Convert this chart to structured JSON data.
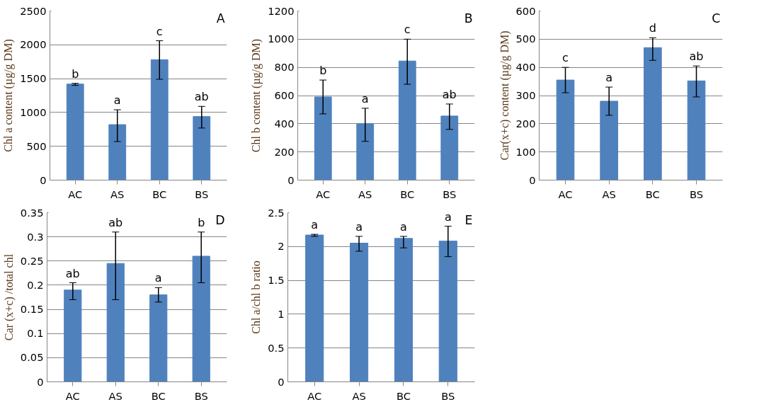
{
  "chart_data": [
    {
      "type": "bar",
      "ylabel": "Chl a content (µg/g DM)",
      "categories": [
        "AC",
        "AS",
        "BC",
        "BS"
      ],
      "series": [
        {
          "color": "#4f81bd",
          "values": [
            1420,
            820,
            1780,
            940
          ],
          "errors": [
            [
              1400,
              1430
            ],
            [
              570,
              1040
            ],
            [
              1490,
              2060
            ],
            [
              770,
              1090
            ]
          ]
        }
      ],
      "ylim": [
        0,
        2500
      ],
      "yticks": [
        0,
        500,
        1000,
        1500,
        2000,
        2500
      ],
      "grid": "y",
      "annotations": [
        "A",
        "b",
        "a",
        "c",
        "ab"
      ]
    },
    {
      "type": "bar",
      "ylabel": "Chl b content (µg/g DM)",
      "categories": [
        "AC",
        "AS",
        "BC",
        "BS"
      ],
      "series": [
        {
          "color": "#4f81bd",
          "values": [
            590,
            400,
            845,
            455
          ],
          "errors": [
            [
              470,
              710
            ],
            [
              275,
              510
            ],
            [
              680,
              1000
            ],
            [
              360,
              540
            ]
          ]
        }
      ],
      "ylim": [
        0,
        1200
      ],
      "yticks": [
        0,
        200,
        400,
        600,
        800,
        1000,
        1200
      ],
      "grid": "y",
      "annotations": [
        "B",
        "b",
        "a",
        "c",
        "ab"
      ]
    },
    {
      "type": "bar",
      "ylabel": "Car(x+c) content (µg/g DM)",
      "categories": [
        "AC",
        "AS",
        "BC",
        "BS"
      ],
      "series": [
        {
          "color": "#4f81bd",
          "values": [
            355,
            280,
            470,
            352
          ],
          "errors": [
            [
              310,
              400
            ],
            [
              230,
              330
            ],
            [
              425,
              505
            ],
            [
              295,
              405
            ]
          ]
        }
      ],
      "ylim": [
        0,
        600
      ],
      "yticks": [
        0,
        100,
        200,
        300,
        400,
        500,
        600
      ],
      "grid": "y",
      "annotations": [
        "C",
        "c",
        "a",
        "d",
        "ab"
      ]
    },
    {
      "type": "bar",
      "ylabel": "Car (x+c) /total chl",
      "categories": [
        "AC",
        "AS",
        "BC",
        "BS"
      ],
      "series": [
        {
          "color": "#4f81bd",
          "values": [
            0.19,
            0.245,
            0.18,
            0.26
          ],
          "errors": [
            [
              0.17,
              0.205
            ],
            [
              0.17,
              0.31
            ],
            [
              0.165,
              0.195
            ],
            [
              0.205,
              0.31
            ]
          ]
        }
      ],
      "ylim": [
        0,
        0.35
      ],
      "yticks": [
        0,
        0.05,
        0.1,
        0.15,
        0.2,
        0.25,
        0.3,
        0.35
      ],
      "grid": "y",
      "annotations": [
        "D",
        "ab",
        "ab",
        "a",
        "b"
      ]
    },
    {
      "type": "bar",
      "ylabel": "Chl a/chl b ratio",
      "categories": [
        "AC",
        "AS",
        "BC",
        "BS"
      ],
      "series": [
        {
          "color": "#4f81bd",
          "values": [
            2.17,
            2.05,
            2.12,
            2.08
          ],
          "errors": [
            [
              2.15,
              2.18
            ],
            [
              1.93,
              2.15
            ],
            [
              1.98,
              2.15
            ],
            [
              1.85,
              2.3
            ]
          ]
        }
      ],
      "ylim": [
        0,
        2.5
      ],
      "yticks": [
        0,
        0.5,
        1,
        1.5,
        2,
        2.5
      ],
      "grid": "y",
      "annotations": [
        "E",
        "a",
        "a",
        "a",
        "a"
      ]
    }
  ]
}
